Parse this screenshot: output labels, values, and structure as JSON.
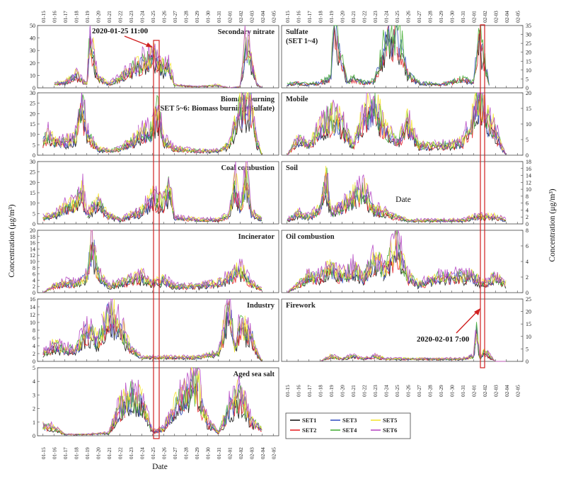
{
  "chart_data": {
    "type": "line",
    "x_dates": [
      "01-15",
      "01-16",
      "01-17",
      "01-18",
      "01-19",
      "01-20",
      "01-21",
      "01-22",
      "01-23",
      "01-24",
      "01-25",
      "01-26",
      "01-27",
      "01-28",
      "01-29",
      "01-30",
      "01-31",
      "02-01",
      "02-02",
      "02-03",
      "02-04",
      "02-05"
    ],
    "xlabel": "Date",
    "ylabel_left": "Concentration (μg/m³)",
    "ylabel_right": "Concentration (μg/m³)",
    "series_names": [
      "SET1",
      "SET2",
      "SET3",
      "SET4",
      "SET5",
      "SET6"
    ],
    "series_colors": [
      "#1a1a1a",
      "#e8262a",
      "#3b57c4",
      "#4ab03a",
      "#f5e432",
      "#b74bc4"
    ],
    "annotations": [
      {
        "label": "2020-01-25  11:00",
        "x": "01-25 11:00"
      },
      {
        "label": "2020-02-01   7:00",
        "x": "02-01 07:00"
      }
    ],
    "panels": [
      {
        "id": "secondary-nitrate",
        "title": "Secondary nitrate",
        "col": 0,
        "row": 0,
        "ylim": [
          0,
          50
        ],
        "yticks": [
          0,
          10,
          20,
          30,
          40,
          50
        ],
        "profile": [
          [
            1,
            3
          ],
          [
            2,
            4
          ],
          [
            3,
            10
          ],
          [
            4,
            3
          ],
          [
            4.3,
            40
          ],
          [
            4.7,
            20
          ],
          [
            5,
            8
          ],
          [
            6,
            3
          ],
          [
            7,
            8
          ],
          [
            8,
            14
          ],
          [
            9,
            20
          ],
          [
            10,
            24
          ],
          [
            11,
            16
          ],
          [
            11.5,
            18
          ],
          [
            12,
            2
          ],
          [
            14,
            1
          ],
          [
            16,
            2
          ],
          [
            17,
            0
          ],
          [
            18,
            1
          ],
          [
            18.5,
            39
          ],
          [
            19,
            20
          ],
          [
            19.5,
            3
          ],
          [
            20,
            0
          ]
        ]
      },
      {
        "id": "sulfate",
        "title": "Sulfate",
        "subtitle": "(SET 1~4)",
        "col": 1,
        "row": 0,
        "ylim": [
          0,
          35
        ],
        "yticks": [
          0,
          5,
          10,
          15,
          20,
          25,
          30,
          35
        ],
        "profile": [
          [
            0,
            2
          ],
          [
            1,
            3
          ],
          [
            2,
            2
          ],
          [
            3,
            3
          ],
          [
            4,
            6
          ],
          [
            4.3,
            43
          ],
          [
            4.8,
            20
          ],
          [
            5.5,
            3
          ],
          [
            6,
            6
          ],
          [
            7,
            3
          ],
          [
            8,
            4
          ],
          [
            9,
            28
          ],
          [
            10,
            32
          ],
          [
            10.5,
            24
          ],
          [
            11,
            8
          ],
          [
            12,
            3
          ],
          [
            14,
            2
          ],
          [
            16,
            5
          ],
          [
            17,
            3
          ],
          [
            17.5,
            30
          ],
          [
            18,
            15
          ],
          [
            18.5,
            0
          ]
        ]
      },
      {
        "id": "biomass-burning",
        "title": "Biomass burning",
        "subtitle": "(SET 5~6: Biomass burning+Sulfate)",
        "col": 0,
        "row": 1,
        "ylim": [
          0,
          30
        ],
        "yticks": [
          0,
          5,
          10,
          15,
          20,
          25,
          30
        ],
        "profile": [
          [
            0,
            6
          ],
          [
            0.5,
            10
          ],
          [
            1,
            7
          ],
          [
            2,
            6
          ],
          [
            3,
            9
          ],
          [
            3.5,
            26
          ],
          [
            4,
            10
          ],
          [
            5,
            3
          ],
          [
            6,
            2
          ],
          [
            7,
            3
          ],
          [
            8,
            6
          ],
          [
            9,
            10
          ],
          [
            10,
            12
          ],
          [
            10.4,
            22
          ],
          [
            11,
            7
          ],
          [
            12,
            3
          ],
          [
            14,
            2
          ],
          [
            16,
            2
          ],
          [
            17,
            5
          ],
          [
            17.5,
            14
          ],
          [
            18,
            22
          ],
          [
            19,
            24
          ],
          [
            19.5,
            6
          ],
          [
            20,
            0
          ]
        ]
      },
      {
        "id": "mobile",
        "title": "Mobile",
        "col": 1,
        "row": 1,
        "ylim": [
          0,
          20
        ],
        "yticks": [
          0,
          5,
          10,
          15,
          20
        ],
        "profile": [
          [
            0,
            0
          ],
          [
            1,
            5
          ],
          [
            2,
            3
          ],
          [
            3,
            8
          ],
          [
            4,
            12
          ],
          [
            5,
            10
          ],
          [
            6,
            3
          ],
          [
            7,
            12
          ],
          [
            8,
            15
          ],
          [
            9,
            8
          ],
          [
            10,
            4
          ],
          [
            11,
            10
          ],
          [
            12,
            3
          ],
          [
            14,
            3
          ],
          [
            16,
            4
          ],
          [
            17,
            12
          ],
          [
            17.5,
            18
          ],
          [
            18,
            12
          ],
          [
            19,
            8
          ],
          [
            19.5,
            3
          ],
          [
            20,
            0
          ]
        ]
      },
      {
        "id": "coal-combustion",
        "title": "Coal combustion",
        "col": 0,
        "row": 2,
        "ylim": [
          0,
          30
        ],
        "yticks": [
          0,
          5,
          10,
          15,
          20,
          25,
          30
        ],
        "profile": [
          [
            0,
            3
          ],
          [
            1,
            4
          ],
          [
            2,
            8
          ],
          [
            3,
            9
          ],
          [
            3.5,
            18
          ],
          [
            4,
            5
          ],
          [
            5,
            10
          ],
          [
            6,
            4
          ],
          [
            7,
            2
          ],
          [
            8,
            4
          ],
          [
            9,
            6
          ],
          [
            10,
            12
          ],
          [
            11,
            10
          ],
          [
            11.5,
            17
          ],
          [
            12,
            3
          ],
          [
            14,
            2
          ],
          [
            16,
            2
          ],
          [
            17,
            4
          ],
          [
            17.5,
            21
          ],
          [
            18,
            5
          ],
          [
            18.5,
            24
          ],
          [
            19,
            5
          ],
          [
            20,
            2
          ]
        ]
      },
      {
        "id": "soil",
        "title": "Soil",
        "col": 1,
        "row": 2,
        "ylim": [
          0,
          18
        ],
        "yticks": [
          0,
          2,
          4,
          6,
          8,
          10,
          12,
          14,
          16,
          18
        ],
        "profile": [
          [
            0,
            1
          ],
          [
            1,
            3
          ],
          [
            2,
            2
          ],
          [
            3,
            4
          ],
          [
            3.5,
            14
          ],
          [
            4,
            3
          ],
          [
            5,
            5
          ],
          [
            6,
            8
          ],
          [
            7,
            9
          ],
          [
            8,
            4
          ],
          [
            9,
            3
          ],
          [
            10,
            2
          ],
          [
            11,
            1
          ],
          [
            12,
            1
          ],
          [
            14,
            1
          ],
          [
            16,
            1
          ],
          [
            17,
            2
          ],
          [
            18,
            2
          ],
          [
            19,
            2
          ],
          [
            20,
            1
          ]
        ]
      },
      {
        "id": "incinerator",
        "title": "Incinerator",
        "col": 0,
        "row": 3,
        "ylim": [
          0,
          20
        ],
        "yticks": [
          0,
          2,
          4,
          6,
          8,
          10,
          12,
          14,
          16,
          18,
          20
        ],
        "profile": [
          [
            0,
            0
          ],
          [
            1,
            2
          ],
          [
            2,
            3
          ],
          [
            3,
            3
          ],
          [
            4,
            5
          ],
          [
            4.5,
            17
          ],
          [
            5,
            6
          ],
          [
            6,
            2
          ],
          [
            7,
            3
          ],
          [
            8,
            4
          ],
          [
            9,
            5
          ],
          [
            10,
            3
          ],
          [
            11,
            4
          ],
          [
            12,
            2
          ],
          [
            14,
            2
          ],
          [
            16,
            3
          ],
          [
            17,
            5
          ],
          [
            18,
            7
          ],
          [
            19,
            3
          ],
          [
            20,
            1
          ]
        ]
      },
      {
        "id": "oil-combustion",
        "title": "Oil combustion",
        "col": 1,
        "row": 3,
        "ylim": [
          0,
          8
        ],
        "yticks": [
          0,
          2,
          4,
          6,
          8
        ],
        "profile": [
          [
            0,
            0
          ],
          [
            1,
            1
          ],
          [
            2,
            2
          ],
          [
            3,
            2
          ],
          [
            4,
            3
          ],
          [
            5,
            2
          ],
          [
            6,
            3
          ],
          [
            7,
            2
          ],
          [
            8,
            4
          ],
          [
            9,
            3
          ],
          [
            10,
            6
          ],
          [
            11,
            2
          ],
          [
            12,
            1
          ],
          [
            14,
            2
          ],
          [
            16,
            2
          ],
          [
            17,
            2
          ],
          [
            18,
            1
          ],
          [
            19,
            2
          ],
          [
            20,
            1
          ]
        ]
      },
      {
        "id": "industry",
        "title": "Industry",
        "col": 0,
        "row": 4,
        "ylim": [
          0,
          16
        ],
        "yticks": [
          0,
          2,
          4,
          6,
          8,
          10,
          12,
          14,
          16
        ],
        "profile": [
          [
            0,
            2
          ],
          [
            1,
            4
          ],
          [
            2,
            3
          ],
          [
            3,
            3
          ],
          [
            4,
            8
          ],
          [
            5,
            5
          ],
          [
            6,
            12
          ],
          [
            7,
            9
          ],
          [
            8,
            3
          ],
          [
            9,
            1
          ],
          [
            10,
            1
          ],
          [
            12,
            1
          ],
          [
            14,
            1
          ],
          [
            16,
            2
          ],
          [
            17,
            14
          ],
          [
            17.5,
            3
          ],
          [
            18,
            9
          ],
          [
            19,
            7
          ],
          [
            19.5,
            2
          ],
          [
            20,
            0
          ]
        ]
      },
      {
        "id": "firework",
        "title": "Firework",
        "col": 1,
        "row": 4,
        "ylim": [
          0,
          25
        ],
        "yticks": [
          0,
          5,
          10,
          15,
          20,
          25
        ],
        "profile": [
          [
            3,
            0
          ],
          [
            4,
            2
          ],
          [
            5,
            1
          ],
          [
            6,
            2
          ],
          [
            7,
            1
          ],
          [
            8,
            2
          ],
          [
            9,
            1
          ],
          [
            10,
            1
          ],
          [
            12,
            1
          ],
          [
            14,
            1
          ],
          [
            16,
            1
          ],
          [
            17,
            2
          ],
          [
            17.3,
            12
          ],
          [
            17.6,
            1
          ],
          [
            18,
            4
          ],
          [
            19,
            0
          ],
          [
            20,
            0
          ]
        ]
      },
      {
        "id": "aged-sea-salt",
        "title": "Aged sea salt",
        "col": 0,
        "row": 5,
        "ylim": [
          0,
          5
        ],
        "yticks": [
          0,
          1,
          2,
          3,
          4,
          5
        ],
        "profile": [
          [
            0,
            0.7
          ],
          [
            1,
            0.6
          ],
          [
            2,
            0.1
          ],
          [
            4,
            0.1
          ],
          [
            6,
            0.2
          ],
          [
            7,
            2
          ],
          [
            8,
            2.8
          ],
          [
            9,
            2.5
          ],
          [
            10,
            0.3
          ],
          [
            11,
            0.5
          ],
          [
            12,
            2
          ],
          [
            13,
            3
          ],
          [
            14,
            3.8
          ],
          [
            15,
            1
          ],
          [
            16,
            0.2
          ],
          [
            17,
            2
          ],
          [
            18,
            3
          ],
          [
            19,
            1
          ],
          [
            20,
            0.5
          ]
        ]
      }
    ],
    "legend": {
      "placement": "bottom-right",
      "entries": [
        "SET1",
        "SET2",
        "SET3",
        "SET4",
        "SET5",
        "SET6"
      ]
    }
  }
}
